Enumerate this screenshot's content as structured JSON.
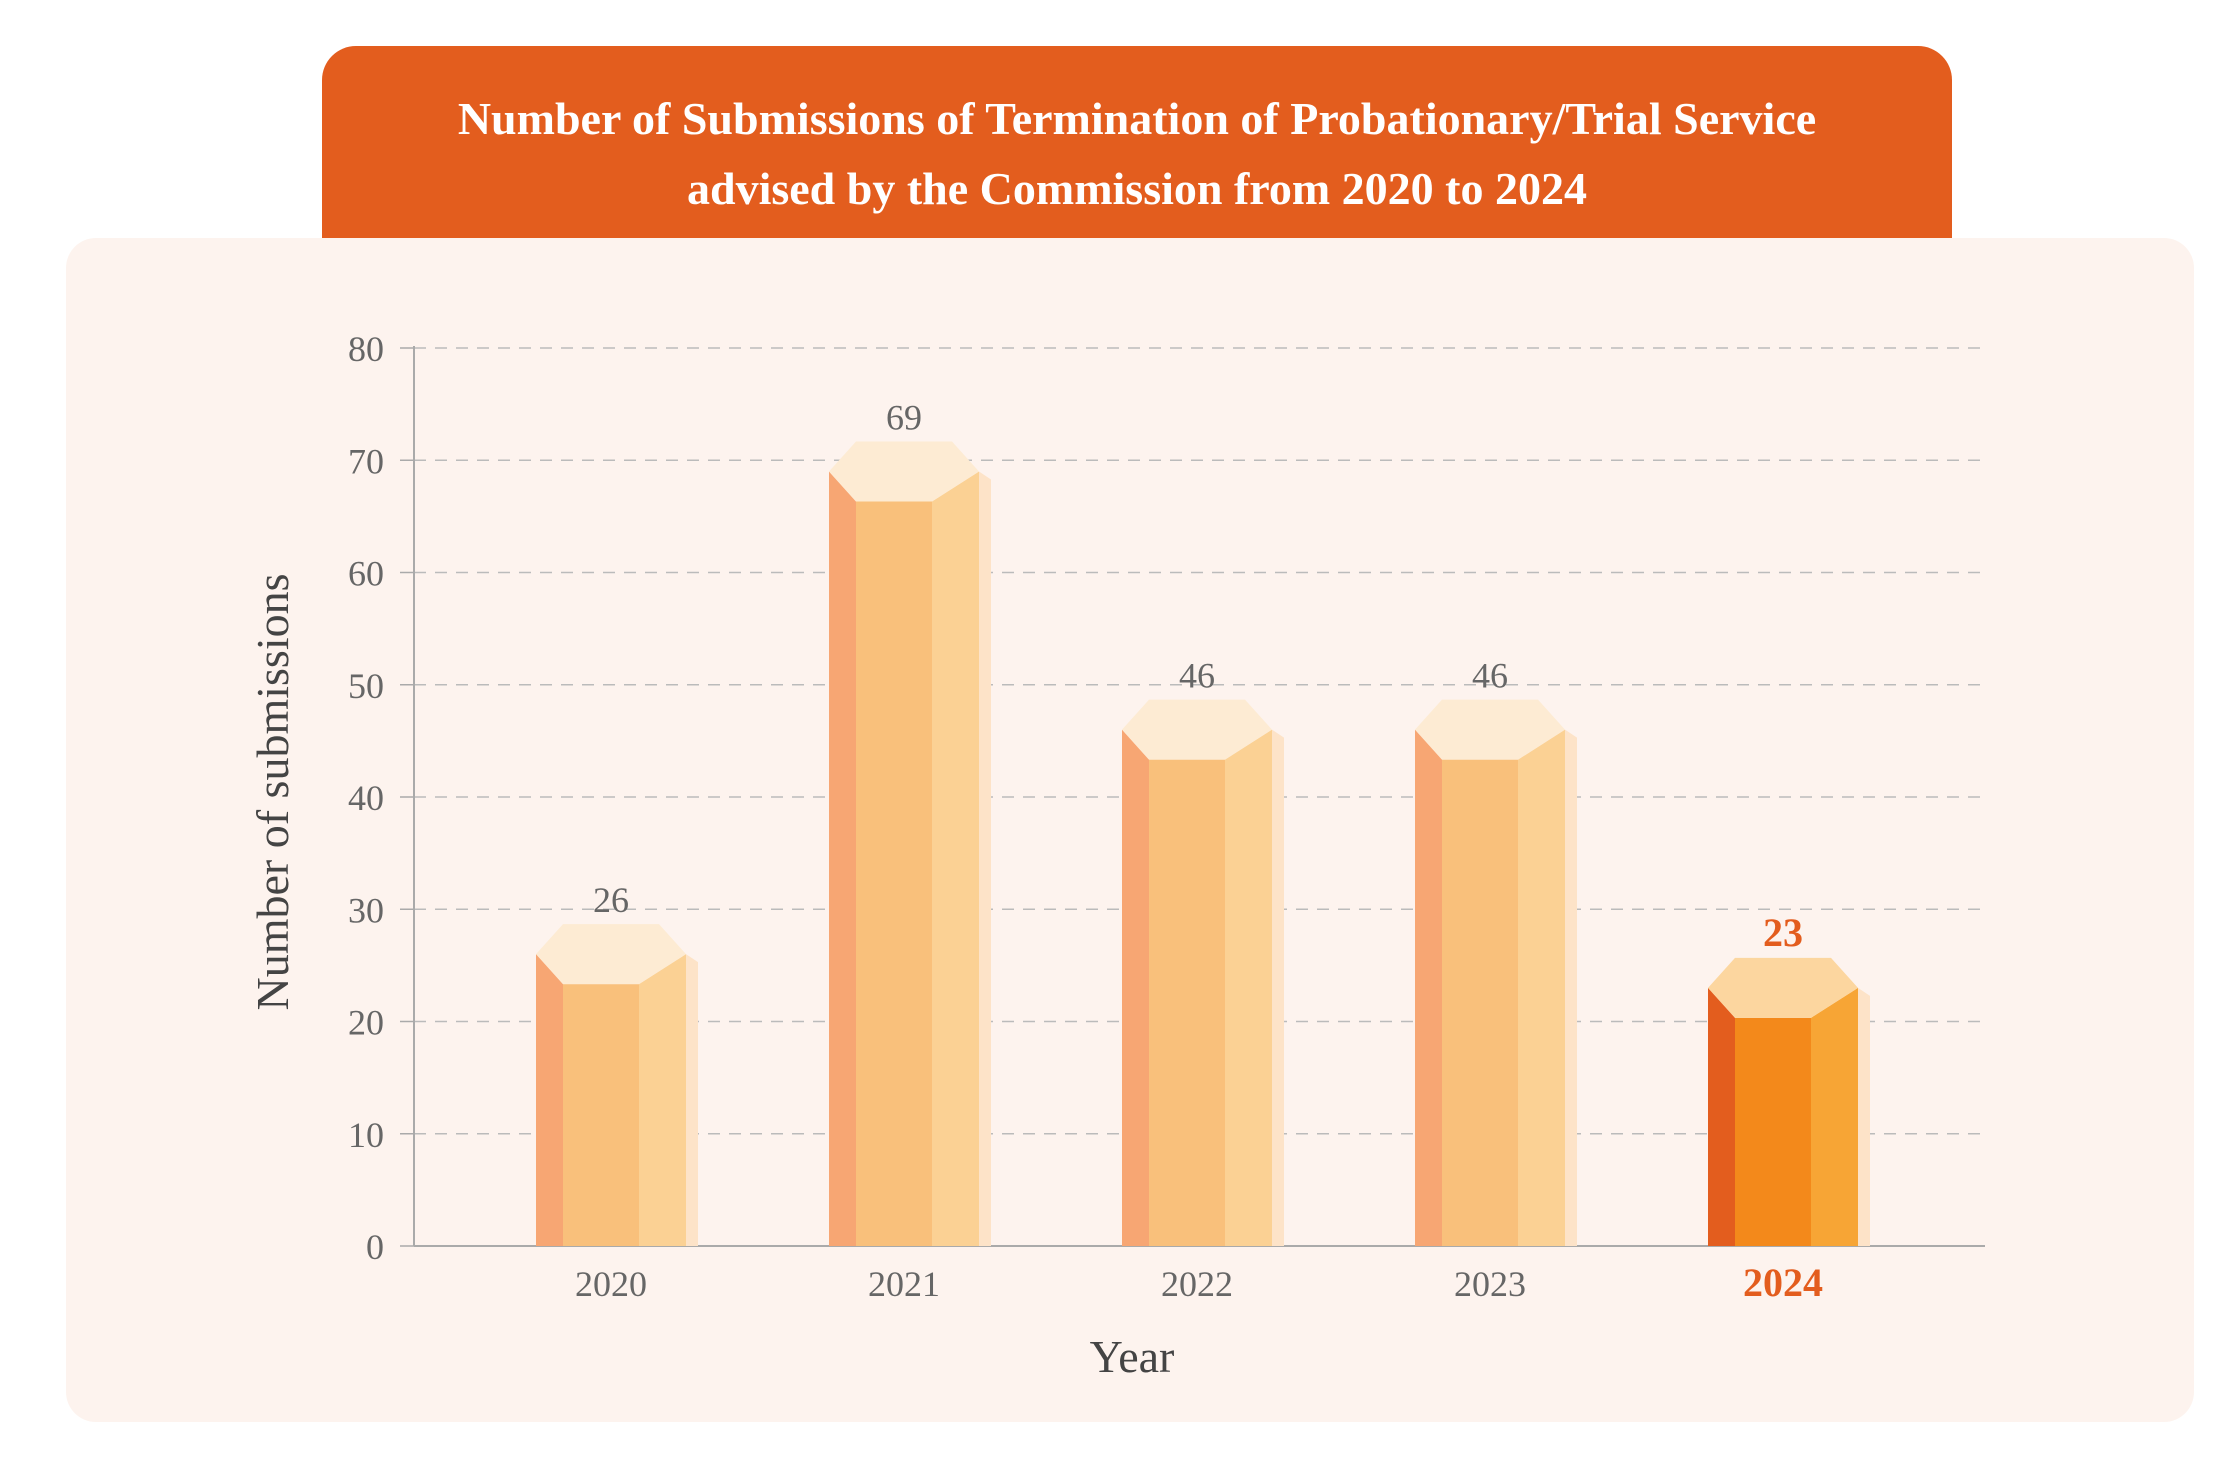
{
  "chart_data": {
    "type": "bar",
    "title": "Number of Submissions of Termination of Probationary/Trial Service advised by the Commission from 2020 to 2024",
    "title_lines": [
      "Number of Submissions of Termination of Probationary/Trial Service",
      "advised by the Commission from 2020 to 2024"
    ],
    "categories": [
      "2020",
      "2021",
      "2022",
      "2023",
      "2024"
    ],
    "values": [
      26,
      69,
      46,
      46,
      23
    ],
    "highlight_category": "2024",
    "xlabel": "Year",
    "ylabel": "Number of submissions",
    "ylim": [
      0,
      80
    ],
    "yticks": [
      0,
      10,
      20,
      30,
      40,
      50,
      60,
      70,
      80
    ],
    "grid": true,
    "colors": {
      "banner": "#e35d1e",
      "panel": "#fdf3ee",
      "bar_left": "#f7a673",
      "bar_front": "#f9c07b",
      "bar_right": "#fbd194",
      "bar_top": "#fdebd3",
      "bar_shadow": "#fde3c8",
      "highlight_left": "#e35d1e",
      "highlight_front": "#f3891b",
      "highlight_right": "#f7a535",
      "highlight_top": "#fcd69f",
      "highlight_text": "#e35d1e",
      "text": "#666666",
      "grid": "#bbbbbb"
    }
  }
}
